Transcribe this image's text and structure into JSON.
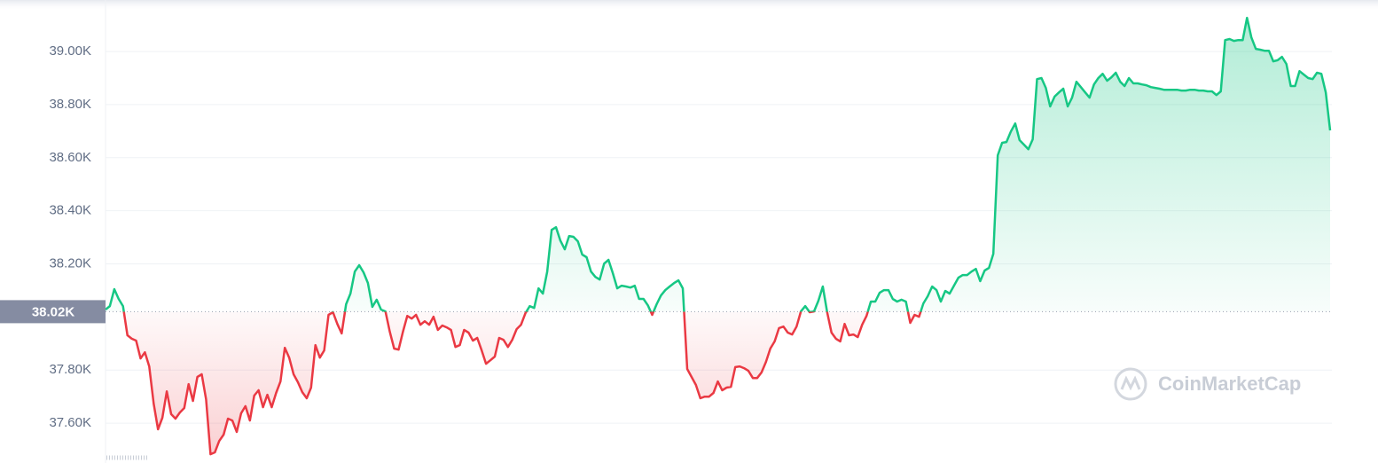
{
  "chart_data": {
    "type": "line",
    "series": [
      {
        "color_up": "#16c784",
        "color_down": "#ea3943",
        "values": [
          38028,
          38041,
          38105,
          38068,
          38041,
          37931,
          37918,
          37911,
          37844,
          37867,
          37814,
          37674,
          37577,
          37620,
          37720,
          37634,
          37617,
          37640,
          37657,
          37747,
          37684,
          37774,
          37784,
          37690,
          37483,
          37490,
          37533,
          37557,
          37617,
          37610,
          37567,
          37637,
          37664,
          37610,
          37704,
          37724,
          37660,
          37707,
          37660,
          37714,
          37757,
          37884,
          37847,
          37784,
          37754,
          37717,
          37694,
          37734,
          37894,
          37847,
          37874,
          38008,
          38018,
          37974,
          37938,
          38048,
          38088,
          38171,
          38195,
          38168,
          38128,
          38038,
          38065,
          38028,
          38021,
          37944,
          37881,
          37877,
          37944,
          38004,
          37994,
          38008,
          37971,
          37984,
          37971,
          38001,
          37951,
          37968,
          37961,
          37951,
          37887,
          37894,
          37951,
          37941,
          37911,
          37921,
          37874,
          37824,
          37837,
          37851,
          37921,
          37914,
          37887,
          37914,
          37954,
          37971,
          38014,
          38041,
          38034,
          38108,
          38088,
          38171,
          38328,
          38338,
          38288,
          38255,
          38305,
          38302,
          38285,
          38235,
          38225,
          38171,
          38151,
          38141,
          38201,
          38215,
          38165,
          38108,
          38118,
          38115,
          38111,
          38118,
          38068,
          38068,
          38044,
          38008,
          38048,
          38081,
          38101,
          38115,
          38128,
          38138,
          38108,
          37804,
          37774,
          37744,
          37694,
          37700,
          37700,
          37714,
          37757,
          37724,
          37734,
          37737,
          37811,
          37814,
          37807,
          37797,
          37770,
          37770,
          37791,
          37831,
          37881,
          37908,
          37958,
          37964,
          37941,
          37934,
          37964,
          38021,
          38041,
          38018,
          38021,
          38061,
          38115,
          38018,
          37941,
          37918,
          37908,
          37974,
          37931,
          37934,
          37924,
          37971,
          38004,
          38058,
          38058,
          38091,
          38101,
          38101,
          38068,
          38058,
          38065,
          38058,
          37978,
          38008,
          38001,
          38051,
          38078,
          38115,
          38101,
          38058,
          38098,
          38088,
          38118,
          38148,
          38158,
          38158,
          38171,
          38181,
          38135,
          38175,
          38185,
          38238,
          38609,
          38656,
          38659,
          38699,
          38729,
          38666,
          38649,
          38632,
          38669,
          38896,
          38900,
          38863,
          38793,
          38830,
          38846,
          38860,
          38793,
          38826,
          38886,
          38866,
          38846,
          38826,
          38876,
          38900,
          38916,
          38890,
          38903,
          38920,
          38886,
          38870,
          38900,
          38880,
          38880,
          38876,
          38873,
          38866,
          38863,
          38860,
          38856,
          38856,
          38856,
          38856,
          38853,
          38853,
          38856,
          38856,
          38853,
          38853,
          38850,
          38850,
          38836,
          38850,
          39043,
          39047,
          39040,
          39043,
          39043,
          39127,
          39053,
          39010,
          39007,
          39003,
          39003,
          38963,
          38967,
          38980,
          38953,
          38870,
          38870,
          38926,
          38913,
          38900,
          38896,
          38920,
          38916,
          38846,
          38703
        ]
      }
    ],
    "baseline": {
      "value": 38020,
      "label": "38.02K"
    },
    "ylim": [
      37450,
      39194
    ],
    "yticks": [
      {
        "value": 37600,
        "label": "37.60K"
      },
      {
        "value": 37800,
        "label": "37.80K"
      },
      {
        "value": 38200,
        "label": "38.20K"
      },
      {
        "value": 38400,
        "label": "38.40K"
      },
      {
        "value": 38600,
        "label": "38.60K"
      },
      {
        "value": 38800,
        "label": "38.80K"
      },
      {
        "value": 39000,
        "label": "39.00K"
      }
    ],
    "grid": true,
    "watermark": "CoinMarketCap"
  }
}
